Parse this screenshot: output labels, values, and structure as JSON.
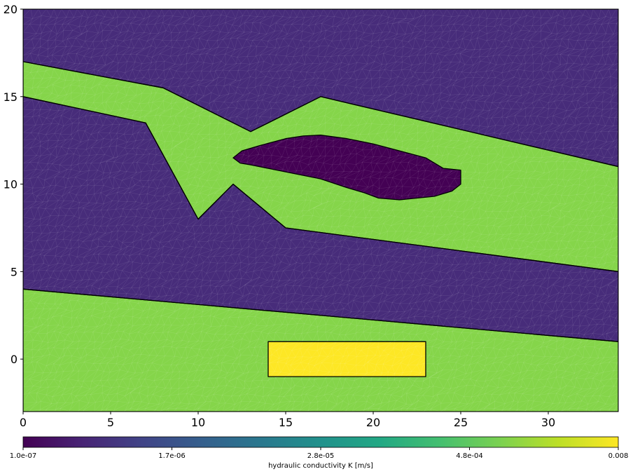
{
  "chart_data": {
    "type": "heatmap",
    "title": "",
    "xlabel": "",
    "ylabel": "",
    "xlim": [
      0,
      34
    ],
    "ylim": [
      -3,
      20
    ],
    "x_ticks": [
      0,
      5,
      10,
      15,
      20,
      25,
      30
    ],
    "y_ticks": [
      0,
      5,
      10,
      15,
      20
    ],
    "grid": false,
    "mesh": "triangulated finite-element mesh (thin translucent edges)",
    "regions": [
      {
        "name": "top-low-conductivity-layer",
        "K": 1.7e-07,
        "color": "#472c7a",
        "polygon": [
          [
            0,
            20
          ],
          [
            34,
            20
          ],
          [
            34,
            11
          ],
          [
            17,
            15
          ],
          [
            13,
            13
          ],
          [
            8,
            15.5
          ],
          [
            0,
            17
          ]
        ]
      },
      {
        "name": "upper-aquifer",
        "K": 0.0005,
        "color": "#85d54a",
        "polygon": [
          [
            0,
            17
          ],
          [
            8,
            15.5
          ],
          [
            13,
            13
          ],
          [
            17,
            15
          ],
          [
            34,
            11
          ],
          [
            34,
            5
          ],
          [
            15,
            7.5
          ],
          [
            12,
            10
          ],
          [
            10,
            8
          ],
          [
            7,
            13.5
          ],
          [
            0,
            15
          ]
        ]
      },
      {
        "name": "middle-low-conductivity-layer",
        "K": 1.7e-07,
        "color": "#472c7a",
        "polygon": [
          [
            0,
            15
          ],
          [
            7,
            13.5
          ],
          [
            10,
            8
          ],
          [
            12,
            10
          ],
          [
            15,
            7.5
          ],
          [
            34,
            5
          ],
          [
            34,
            1
          ],
          [
            0,
            4
          ]
        ]
      },
      {
        "name": "lower-aquifer",
        "K": 0.0005,
        "color": "#85d54a",
        "polygon": [
          [
            0,
            4
          ],
          [
            34,
            1
          ],
          [
            34,
            -3
          ],
          [
            0,
            -3
          ]
        ]
      },
      {
        "name": "clay-lens",
        "K": 1e-07,
        "color": "#440154",
        "polygon": [
          [
            12,
            11.5
          ],
          [
            12.5,
            11.9
          ],
          [
            13.5,
            12.2
          ],
          [
            15,
            12.6
          ],
          [
            16,
            12.75
          ],
          [
            17,
            12.8
          ],
          [
            18.5,
            12.6
          ],
          [
            20,
            12.3
          ],
          [
            21.5,
            11.9
          ],
          [
            23,
            11.5
          ],
          [
            24,
            10.9
          ],
          [
            25,
            10.8
          ],
          [
            25,
            10
          ],
          [
            24.5,
            9.6
          ],
          [
            23.5,
            9.3
          ],
          [
            22.5,
            9.2
          ],
          [
            21.5,
            9.1
          ],
          [
            20.3,
            9.2
          ],
          [
            19.5,
            9.5
          ],
          [
            18.5,
            9.8
          ],
          [
            17,
            10.3
          ],
          [
            15.5,
            10.6
          ],
          [
            14,
            10.9
          ],
          [
            13,
            11.1
          ],
          [
            12.4,
            11.2
          ]
        ]
      },
      {
        "name": "gravel-block",
        "K": 0.008,
        "color": "#fde725",
        "polygon": [
          [
            14,
            1
          ],
          [
            23,
            1
          ],
          [
            23,
            -1
          ],
          [
            14,
            -1
          ]
        ]
      }
    ],
    "colorbar": {
      "label": "hydraulic conductivity K [m/s]",
      "scale": "log",
      "colormap": "viridis",
      "tick_labels": [
        "1.0e-07",
        "1.7e-06",
        "2.8e-05",
        "4.8e-04",
        "0.008"
      ],
      "range": [
        1e-07,
        0.008
      ]
    }
  }
}
